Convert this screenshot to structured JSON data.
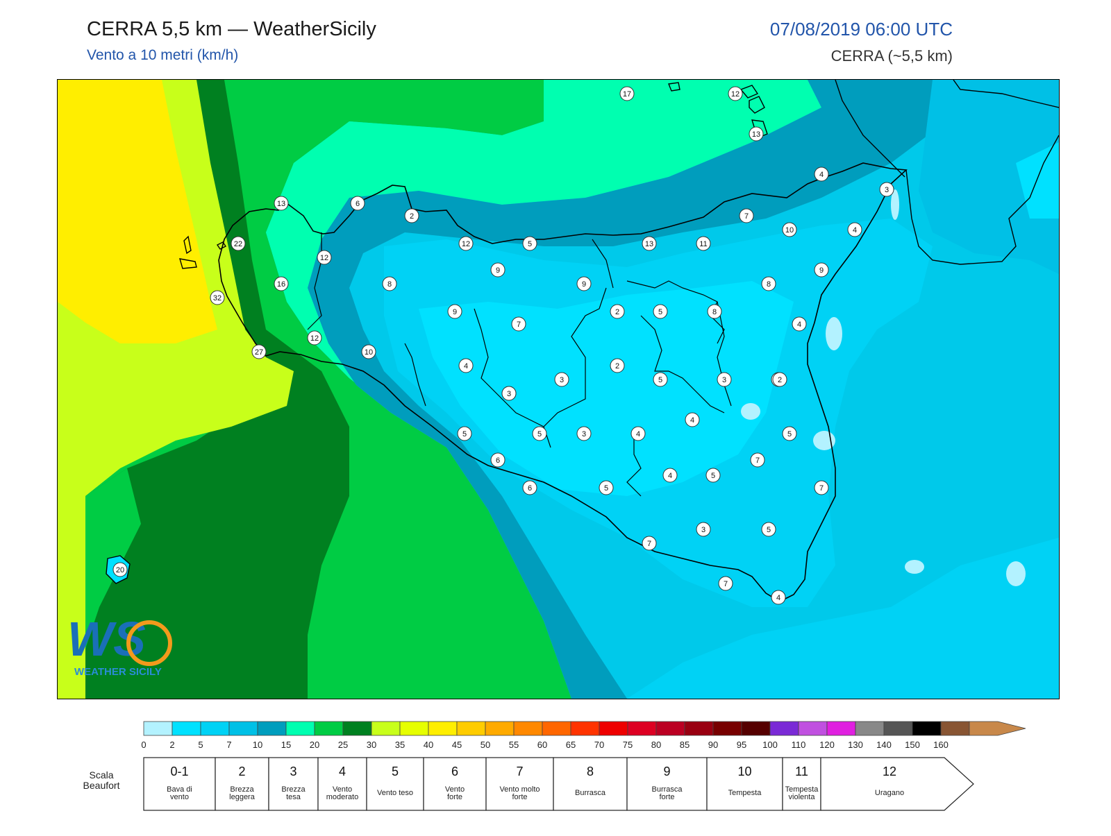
{
  "header": {
    "title": "CERRA 5,5 km — WeatherSicily",
    "subtitle": "Vento a 10 metri (km/h)",
    "datetime": "07/08/2019 06:00 UTC",
    "model": "CERRA (~5,5 km)"
  },
  "logo": {
    "name": "ws-logo",
    "tagline": "WEATHER SICILY"
  },
  "colorbar": {
    "colors": [
      "#b3f2ff",
      "#00e1ff",
      "#00d2f5",
      "#00c0e6",
      "#009dbd",
      "#00ffb0",
      "#00cc44",
      "#008020",
      "#c8ff1a",
      "#e6ff00",
      "#ffee00",
      "#ffcc00",
      "#ffaa00",
      "#ff8800",
      "#ff6600",
      "#ff3300",
      "#ee0000",
      "#dd0022",
      "#bb0022",
      "#990011",
      "#770000",
      "#550000",
      "#7a2ad6",
      "#c050e0",
      "#e020e0",
      "#888888",
      "#555555",
      "#000000",
      "#885533",
      "#c8884a"
    ],
    "ticks": [
      "0",
      "2",
      "5",
      "7",
      "10",
      "15",
      "20",
      "25",
      "30",
      "35",
      "40",
      "45",
      "50",
      "55",
      "60",
      "65",
      "70",
      "75",
      "80",
      "85",
      "90",
      "95",
      "100",
      "110",
      "120",
      "130",
      "140",
      "150",
      "160"
    ]
  },
  "beaufort": {
    "label": "Scala Beaufort",
    "cells": [
      {
        "num": "0-1",
        "desc": "Bava di vento"
      },
      {
        "num": "2",
        "desc": "Brezza leggera"
      },
      {
        "num": "3",
        "desc": "Brezza tesa"
      },
      {
        "num": "4",
        "desc": "Vento moderato"
      },
      {
        "num": "5",
        "desc": "Vento teso"
      },
      {
        "num": "6",
        "desc": "Vento forte"
      },
      {
        "num": "7",
        "desc": "Vento molto forte"
      },
      {
        "num": "8",
        "desc": "Burrasca"
      },
      {
        "num": "9",
        "desc": "Burrasca forte"
      },
      {
        "num": "10",
        "desc": "Tempesta"
      },
      {
        "num": "11",
        "desc": "Tempesta violenta"
      },
      {
        "num": "12",
        "desc": "Uragano"
      }
    ]
  },
  "stations": [
    "17",
    "12",
    "13",
    "4",
    "3",
    "13",
    "6",
    "2",
    "12",
    "5",
    "13",
    "11",
    "7",
    "10",
    "4",
    "22",
    "12",
    "16",
    "8",
    "9",
    "9",
    "8",
    "32",
    "9",
    "2",
    "5",
    "8",
    "9",
    "7",
    "4",
    "12",
    "27",
    "10",
    "4",
    "2",
    "3",
    "5",
    "3",
    "4",
    "3",
    "2",
    "3",
    "4",
    "5",
    "5",
    "5",
    "3",
    "4",
    "6",
    "7",
    "4",
    "5",
    "6",
    "5",
    "7",
    "3",
    "5",
    "7",
    "7",
    "4",
    "20"
  ]
}
